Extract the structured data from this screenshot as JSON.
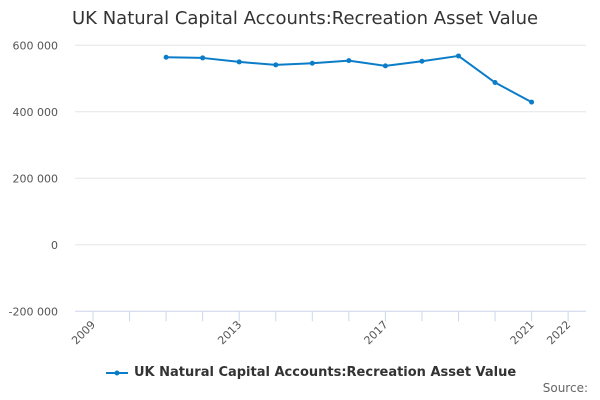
{
  "chart_data": {
    "type": "line",
    "title": "UK Natural Capital Accounts:Recreation Asset Value",
    "xlabel": "",
    "ylabel": "",
    "x_ticks_labeled": [
      "2009",
      "2013",
      "2017",
      "2021",
      "2022"
    ],
    "xlim": [
      2009,
      2022
    ],
    "ylim": [
      -200000,
      600000
    ],
    "y_ticks": [
      -200000,
      0,
      200000,
      400000,
      600000
    ],
    "y_tick_labels": [
      "-200 000",
      "0",
      "200 000",
      "400 000",
      "600 000"
    ],
    "grid": true,
    "legend_position": "bottom",
    "series": [
      {
        "name": "UK Natural Capital Accounts:Recreation Asset Value",
        "color": "#0b7dc8",
        "x": [
          2011,
          2012,
          2013,
          2014,
          2015,
          2016,
          2017,
          2018,
          2019,
          2020,
          2021
        ],
        "values": [
          564000,
          562000,
          550000,
          541000,
          546000,
          554000,
          538000,
          552000,
          568000,
          488000,
          429000
        ]
      }
    ]
  },
  "source_label": "Source:"
}
